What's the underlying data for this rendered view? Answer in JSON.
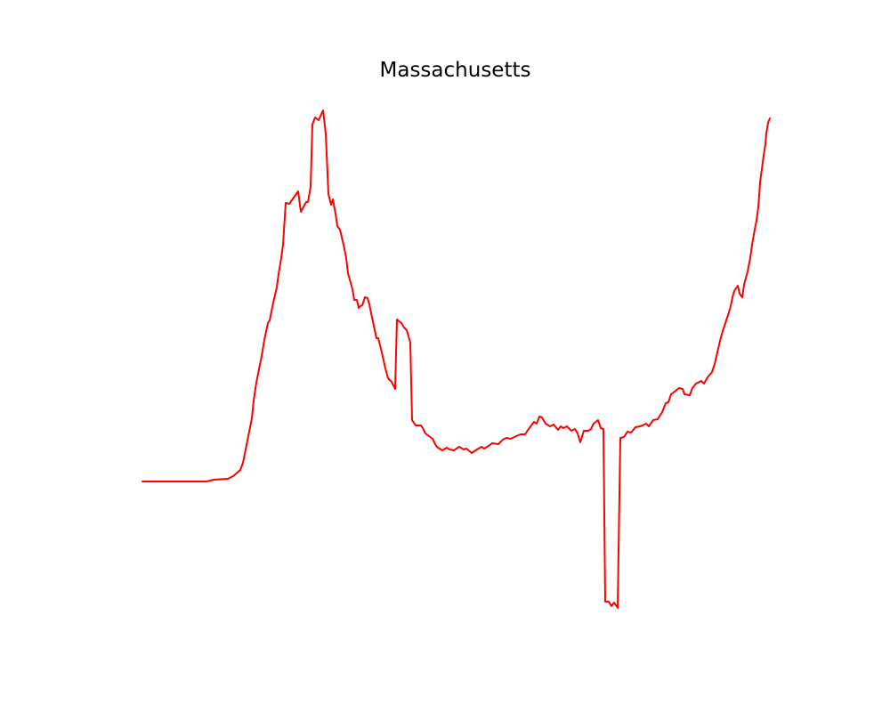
{
  "chart_data": {
    "type": "line",
    "title": "Massachusetts",
    "xlabel": "",
    "ylabel": "",
    "axes_visible": false,
    "grid": false,
    "legend": "none",
    "series": [
      {
        "color": "#ff0000",
        "points": [
          [
            160,
            541
          ],
          [
            232,
            541
          ],
          [
            240,
            539
          ],
          [
            256,
            538
          ],
          [
            262,
            535
          ],
          [
            270,
            528
          ],
          [
            273,
            520
          ],
          [
            278,
            495
          ],
          [
            283,
            470
          ],
          [
            285,
            450
          ],
          [
            288,
            430
          ],
          [
            291,
            415
          ],
          [
            294,
            400
          ],
          [
            297,
            382
          ],
          [
            301,
            363
          ],
          [
            303,
            360
          ],
          [
            307,
            340
          ],
          [
            311,
            323
          ],
          [
            313,
            308
          ],
          [
            316,
            290
          ],
          [
            318,
            275
          ],
          [
            321,
            228
          ],
          [
            325,
            229
          ],
          [
            335,
            215
          ],
          [
            338,
            238
          ],
          [
            344,
            227
          ],
          [
            346,
            227
          ],
          [
            349,
            210
          ],
          [
            351,
            140
          ],
          [
            354,
            132
          ],
          [
            358,
            135
          ],
          [
            363,
            124
          ],
          [
            366,
            150
          ],
          [
            369,
            218
          ],
          [
            372,
            230
          ],
          [
            374,
            224
          ],
          [
            377,
            240
          ],
          [
            379,
            254
          ],
          [
            382,
            258
          ],
          [
            386,
            275
          ],
          [
            389,
            290
          ],
          [
            391,
            307
          ],
          [
            396,
            325
          ],
          [
            398,
            337
          ],
          [
            401,
            337
          ],
          [
            403,
            346
          ],
          [
            405,
            344
          ],
          [
            407,
            343
          ],
          [
            410,
            334
          ],
          [
            413,
            335
          ],
          [
            415,
            342
          ],
          [
            417,
            352
          ],
          [
            420,
            366
          ],
          [
            423,
            380
          ],
          [
            425,
            380
          ],
          [
            429,
            396
          ],
          [
            433,
            414
          ],
          [
            436,
            425
          ],
          [
            440,
            429
          ],
          [
            444,
            437
          ],
          [
            446,
            359
          ],
          [
            451,
            363
          ],
          [
            454,
            368
          ],
          [
            457,
            371
          ],
          [
            461,
            385
          ],
          [
            463,
            472
          ],
          [
            467,
            478
          ],
          [
            473,
            478
          ],
          [
            475,
            481
          ],
          [
            478,
            487
          ],
          [
            482,
            490
          ],
          [
            486,
            493
          ],
          [
            490,
            501
          ],
          [
            492,
            503
          ],
          [
            497,
            506
          ],
          [
            502,
            503
          ],
          [
            505,
            505
          ],
          [
            510,
            506
          ],
          [
            516,
            502
          ],
          [
            521,
            505
          ],
          [
            524,
            504
          ],
          [
            530,
            509
          ],
          [
            536,
            505
          ],
          [
            541,
            502
          ],
          [
            544,
            504
          ],
          [
            549,
            501
          ],
          [
            553,
            498
          ],
          [
            560,
            499
          ],
          [
            565,
            494
          ],
          [
            569,
            492
          ],
          [
            574,
            493
          ],
          [
            580,
            490
          ],
          [
            585,
            488
          ],
          [
            590,
            488
          ],
          [
            594,
            482
          ],
          [
            600,
            474
          ],
          [
            603,
            476
          ],
          [
            606,
            468
          ],
          [
            609,
            469
          ],
          [
            613,
            476
          ],
          [
            618,
            479
          ],
          [
            622,
            477
          ],
          [
            627,
            483
          ],
          [
            630,
            479
          ],
          [
            633,
            481
          ],
          [
            637,
            479
          ],
          [
            642,
            484
          ],
          [
            646,
            482
          ],
          [
            649,
            487
          ],
          [
            652,
            497
          ],
          [
            656,
            484
          ],
          [
            661,
            484
          ],
          [
            664,
            482
          ],
          [
            667,
            476
          ],
          [
            672,
            472
          ],
          [
            675,
            481
          ],
          [
            678,
            482
          ],
          [
            680,
            676
          ],
          [
            684,
            676
          ],
          [
            687,
            681
          ],
          [
            690,
            677
          ],
          [
            694,
            683
          ],
          [
            697,
            492
          ],
          [
            701,
            491
          ],
          [
            705,
            485
          ],
          [
            709,
            486
          ],
          [
            714,
            480
          ],
          [
            719,
            479
          ],
          [
            722,
            478
          ],
          [
            726,
            476
          ],
          [
            729,
            479
          ],
          [
            734,
            472
          ],
          [
            739,
            471
          ],
          [
            744,
            463
          ],
          [
            748,
            453
          ],
          [
            751,
            452
          ],
          [
            754,
            443
          ],
          [
            758,
            440
          ],
          [
            763,
            436
          ],
          [
            767,
            437
          ],
          [
            769,
            443
          ],
          [
            775,
            444
          ],
          [
            778,
            436
          ],
          [
            782,
            431
          ],
          [
            788,
            428
          ],
          [
            791,
            431
          ],
          [
            795,
            424
          ],
          [
            800,
            418
          ],
          [
            803,
            409
          ],
          [
            806,
            396
          ],
          [
            809,
            383
          ],
          [
            812,
            372
          ],
          [
            816,
            360
          ],
          [
            819,
            351
          ],
          [
            821,
            344
          ],
          [
            823,
            334
          ],
          [
            825,
            327
          ],
          [
            829,
            321
          ],
          [
            831,
            330
          ],
          [
            834,
            334
          ],
          [
            836,
            320
          ],
          [
            840,
            305
          ],
          [
            843,
            290
          ],
          [
            845,
            275
          ],
          [
            848,
            258
          ],
          [
            850,
            248
          ],
          [
            852,
            233
          ],
          [
            853,
            220
          ],
          [
            854,
            205
          ],
          [
            856,
            190
          ],
          [
            858,
            175
          ],
          [
            860,
            162
          ],
          [
            861,
            150
          ],
          [
            863,
            138
          ],
          [
            865,
            133
          ]
        ]
      }
    ]
  }
}
